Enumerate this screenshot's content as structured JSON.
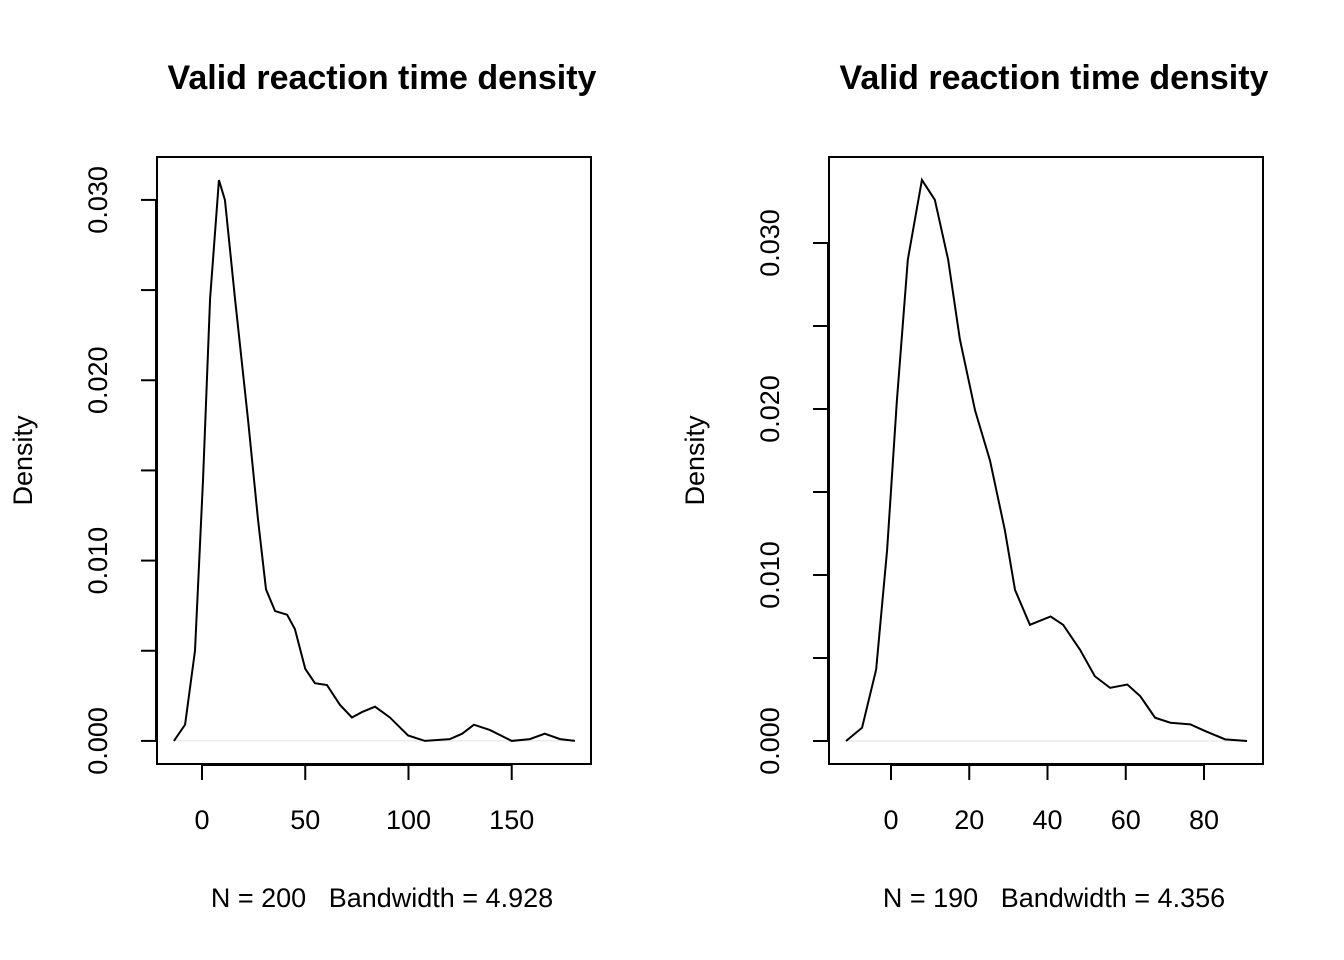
{
  "chart_data": [
    {
      "type": "line",
      "title": "Valid reaction time density",
      "xlabel": "N = 200   Bandwidth = 4.928",
      "ylabel": "Density",
      "color": "#000000",
      "x": [
        -13.6,
        -8.2,
        -3.4,
        0.5,
        3.9,
        8.2,
        11.1,
        16,
        22.3,
        27.1,
        31,
        35.4,
        41.2,
        45,
        50,
        54.7,
        60.5,
        66.8,
        72.6,
        77.5,
        83.8,
        91,
        99.8,
        108,
        120,
        126,
        131.7,
        139.5,
        150,
        158.8,
        166,
        173.4,
        180.6
      ],
      "values": [
        0,
        0.0009,
        0.005,
        0.0145,
        0.0245,
        0.0311,
        0.03,
        0.0245,
        0.0178,
        0.0123,
        0.0084,
        0.0072,
        0.007,
        0.0062,
        0.004,
        0.0032,
        0.0031,
        0.002,
        0.0013,
        0.0016,
        0.0019,
        0.0013,
        0.0003,
        0,
        0.0001,
        0.0004,
        0.0009,
        0.0006,
        0,
        0.0001,
        0.0004,
        0.0001,
        0
      ],
      "xlim": [
        -21.8,
        188.4
      ],
      "ylim": [
        -0.00128,
        0.03238
      ],
      "xticks": [
        0,
        50,
        100,
        150
      ],
      "yticks": [
        {
          "value": 0,
          "label": "0.000"
        },
        {
          "value": 0.01,
          "label": "0.010"
        },
        {
          "value": 0.02,
          "label": "0.020"
        },
        {
          "value": 0.03,
          "label": "0.030"
        }
      ],
      "yminor_ticks": [
        0.005,
        0.015,
        0.025
      ]
    },
    {
      "type": "line",
      "title": "Valid reaction time density",
      "xlabel": "N = 190   Bandwidth = 4.356",
      "ylabel": "Density",
      "color": "#000000",
      "x": [
        -11.5,
        -7.4,
        -3.8,
        -1,
        1.5,
        4.3,
        7.9,
        11.2,
        14.6,
        17.6,
        21.5,
        25.3,
        29.1,
        31.7,
        35.5,
        40.8,
        44,
        48.3,
        52.1,
        56,
        60.4,
        63.7,
        67.5,
        71.4,
        76.5,
        80.3,
        85.4,
        91
      ],
      "values": [
        0,
        0.0008,
        0.0043,
        0.0115,
        0.0205,
        0.029,
        0.0338,
        0.0326,
        0.029,
        0.0242,
        0.0199,
        0.0169,
        0.0127,
        0.0091,
        0.007,
        0.0075,
        0.007,
        0.0055,
        0.0039,
        0.0032,
        0.0034,
        0.0027,
        0.0014,
        0.0011,
        0.001,
        0.0006,
        0.0001,
        0
      ],
      "xlim": [
        -15.85,
        95.08
      ],
      "ylim": [
        -0.001386,
        0.03518
      ],
      "xticks": [
        0,
        20,
        40,
        60,
        80
      ],
      "yticks": [
        {
          "value": 0,
          "label": "0.000"
        },
        {
          "value": 0.01,
          "label": "0.010"
        },
        {
          "value": 0.02,
          "label": "0.020"
        },
        {
          "value": 0.03,
          "label": "0.030"
        }
      ],
      "yminor_ticks": [
        0.005,
        0.015,
        0.025
      ]
    }
  ]
}
